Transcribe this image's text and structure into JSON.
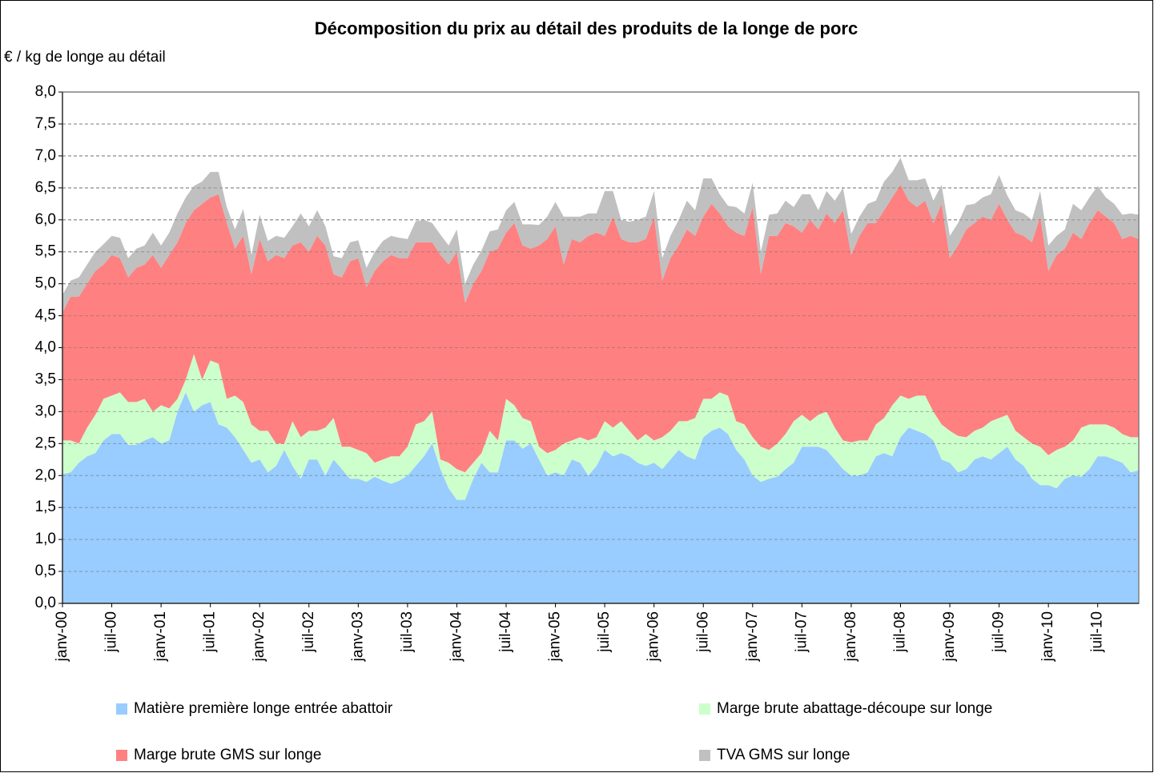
{
  "chart_data": {
    "type": "stacked_area",
    "title": "Décomposition du prix au détail des produits de la longe de porc",
    "y_axis_label": "€ / kg de longe au détail",
    "categories": [
      "janv-00",
      null,
      null,
      null,
      null,
      null,
      "juil-00",
      null,
      null,
      null,
      null,
      null,
      "janv-01",
      null,
      null,
      null,
      null,
      null,
      "juil-01",
      null,
      null,
      null,
      null,
      null,
      "janv-02",
      null,
      null,
      null,
      null,
      null,
      "juil-02",
      null,
      null,
      null,
      null,
      null,
      "janv-03",
      null,
      null,
      null,
      null,
      null,
      "juil-03",
      null,
      null,
      null,
      null,
      null,
      "janv-04",
      null,
      null,
      null,
      null,
      null,
      "juil-04",
      null,
      null,
      null,
      null,
      null,
      "janv-05",
      null,
      null,
      null,
      null,
      null,
      "juil-05",
      null,
      null,
      null,
      null,
      null,
      "janv-06",
      null,
      null,
      null,
      null,
      null,
      "juil-06",
      null,
      null,
      null,
      null,
      null,
      "janv-07",
      null,
      null,
      null,
      null,
      null,
      "juil-07",
      null,
      null,
      null,
      null,
      null,
      "janv-08",
      null,
      null,
      null,
      null,
      null,
      "juil-08",
      null,
      null,
      null,
      null,
      null,
      "janv-09",
      null,
      null,
      null,
      null,
      null,
      "juil-09",
      null,
      null,
      null,
      null,
      null,
      "janv-10",
      null,
      null,
      null,
      null,
      null,
      "juil-10",
      null,
      null,
      null,
      null,
      null
    ],
    "series": [
      {
        "name": "Matière première longe entrée abattoir",
        "color": "#99ccff",
        "values": [
          2.02,
          2.05,
          2.2,
          2.3,
          2.35,
          2.55,
          2.65,
          2.65,
          2.48,
          2.48,
          2.55,
          2.6,
          2.5,
          2.55,
          3.0,
          3.3,
          3.0,
          3.1,
          3.15,
          2.8,
          2.75,
          2.6,
          2.4,
          2.2,
          2.25,
          2.05,
          2.15,
          2.4,
          2.15,
          1.95,
          2.25,
          2.25,
          2.0,
          2.25,
          2.1,
          1.95,
          1.95,
          1.9,
          1.98,
          1.92,
          1.87,
          1.92,
          2.0,
          2.15,
          2.3,
          2.5,
          2.1,
          1.8,
          1.62,
          1.62,
          1.95,
          2.2,
          2.05,
          2.05,
          2.55,
          2.55,
          2.42,
          2.5,
          2.25,
          2.0,
          2.05,
          2.0,
          2.25,
          2.2,
          2.0,
          2.15,
          2.4,
          2.3,
          2.35,
          2.3,
          2.2,
          2.15,
          2.2,
          2.1,
          2.25,
          2.4,
          2.3,
          2.25,
          2.6,
          2.7,
          2.75,
          2.65,
          2.4,
          2.25,
          2.0,
          1.9,
          1.95,
          1.98,
          2.1,
          2.2,
          2.45,
          2.45,
          2.45,
          2.4,
          2.25,
          2.1,
          2.0,
          2.0,
          2.05,
          2.3,
          2.35,
          2.3,
          2.6,
          2.75,
          2.7,
          2.65,
          2.55,
          2.25,
          2.2,
          2.05,
          2.1,
          2.25,
          2.3,
          2.25,
          2.35,
          2.45,
          2.25,
          2.15,
          1.95,
          1.85,
          1.85,
          1.8,
          1.95,
          2.0,
          1.98,
          2.1,
          2.3,
          2.3,
          2.25,
          2.2,
          2.05,
          2.08
        ]
      },
      {
        "name": "Marge brute abattage-découpe sur longe",
        "color": "#ccffcc",
        "values": [
          0.53,
          0.5,
          0.3,
          0.45,
          0.6,
          0.65,
          0.6,
          0.65,
          0.67,
          0.67,
          0.65,
          0.4,
          0.6,
          0.5,
          0.2,
          0.2,
          0.9,
          0.4,
          0.65,
          0.95,
          0.45,
          0.65,
          0.75,
          0.6,
          0.45,
          0.65,
          0.35,
          0.1,
          0.7,
          0.65,
          0.45,
          0.45,
          0.75,
          0.65,
          0.35,
          0.5,
          0.45,
          0.45,
          0.22,
          0.33,
          0.43,
          0.38,
          0.45,
          0.65,
          0.55,
          0.5,
          0.15,
          0.4,
          0.48,
          0.43,
          0.25,
          0.15,
          0.65,
          0.5,
          0.65,
          0.55,
          0.48,
          0.35,
          0.2,
          0.35,
          0.35,
          0.5,
          0.3,
          0.4,
          0.55,
          0.45,
          0.45,
          0.45,
          0.5,
          0.4,
          0.35,
          0.5,
          0.35,
          0.5,
          0.45,
          0.45,
          0.55,
          0.65,
          0.6,
          0.5,
          0.55,
          0.6,
          0.45,
          0.55,
          0.6,
          0.55,
          0.45,
          0.52,
          0.55,
          0.65,
          0.5,
          0.4,
          0.5,
          0.6,
          0.5,
          0.45,
          0.52,
          0.55,
          0.5,
          0.5,
          0.55,
          0.8,
          0.65,
          0.45,
          0.55,
          0.6,
          0.45,
          0.55,
          0.5,
          0.57,
          0.5,
          0.45,
          0.45,
          0.6,
          0.55,
          0.5,
          0.45,
          0.45,
          0.55,
          0.6,
          0.47,
          0.6,
          0.5,
          0.55,
          0.77,
          0.7,
          0.5,
          0.5,
          0.5,
          0.45,
          0.55,
          0.52
        ]
      },
      {
        "name": "Marge brute GMS sur longe",
        "color": "#ff8080",
        "values": [
          2.0,
          2.25,
          2.3,
          2.25,
          2.25,
          2.1,
          2.2,
          2.1,
          1.95,
          2.1,
          2.1,
          2.45,
          2.15,
          2.4,
          2.45,
          2.45,
          2.25,
          2.75,
          2.55,
          2.65,
          2.75,
          2.3,
          2.6,
          2.35,
          3.0,
          2.65,
          2.95,
          2.9,
          2.75,
          3.05,
          2.8,
          3.05,
          2.85,
          2.25,
          2.65,
          2.9,
          3.0,
          2.6,
          3.0,
          3.1,
          3.15,
          3.1,
          2.95,
          2.85,
          2.8,
          2.65,
          3.2,
          3.1,
          3.4,
          2.65,
          2.8,
          2.85,
          2.8,
          3.0,
          2.6,
          2.85,
          2.7,
          2.7,
          3.15,
          3.35,
          3.5,
          2.8,
          3.15,
          3.05,
          3.2,
          3.2,
          2.9,
          3.3,
          2.85,
          2.95,
          3.1,
          3.05,
          3.5,
          2.45,
          2.7,
          2.75,
          3.0,
          2.85,
          2.85,
          3.05,
          2.8,
          2.65,
          2.95,
          2.95,
          3.6,
          2.7,
          3.35,
          3.25,
          3.3,
          3.05,
          2.85,
          3.15,
          2.9,
          3.1,
          3.2,
          3.6,
          2.93,
          3.2,
          3.4,
          3.15,
          3.25,
          3.25,
          3.3,
          3.1,
          2.95,
          3.05,
          2.95,
          3.45,
          2.7,
          2.98,
          3.25,
          3.25,
          3.3,
          3.15,
          3.35,
          3.05,
          3.1,
          3.15,
          3.15,
          3.6,
          2.88,
          3.05,
          3.1,
          3.25,
          2.95,
          3.15,
          3.35,
          3.25,
          3.2,
          3.05,
          3.15,
          3.1
        ]
      },
      {
        "name": "TVA GMS sur longe",
        "color": "#c0c0c0",
        "values": [
          0.28,
          0.25,
          0.3,
          0.3,
          0.3,
          0.32,
          0.3,
          0.32,
          0.3,
          0.3,
          0.3,
          0.35,
          0.35,
          0.35,
          0.45,
          0.4,
          0.38,
          0.35,
          0.4,
          0.35,
          0.25,
          0.3,
          0.42,
          0.3,
          0.38,
          0.32,
          0.3,
          0.32,
          0.3,
          0.45,
          0.4,
          0.4,
          0.3,
          0.28,
          0.3,
          0.3,
          0.28,
          0.3,
          0.3,
          0.32,
          0.3,
          0.32,
          0.3,
          0.33,
          0.35,
          0.3,
          0.32,
          0.3,
          0.35,
          0.3,
          0.3,
          0.32,
          0.32,
          0.3,
          0.35,
          0.33,
          0.33,
          0.38,
          0.32,
          0.35,
          0.38,
          0.75,
          0.35,
          0.4,
          0.35,
          0.3,
          0.7,
          0.4,
          0.3,
          0.32,
          0.35,
          0.35,
          0.4,
          0.35,
          0.35,
          0.4,
          0.45,
          0.4,
          0.6,
          0.4,
          0.3,
          0.32,
          0.4,
          0.35,
          0.38,
          0.35,
          0.33,
          0.35,
          0.35,
          0.3,
          0.6,
          0.4,
          0.3,
          0.35,
          0.35,
          0.35,
          0.33,
          0.3,
          0.3,
          0.35,
          0.45,
          0.4,
          0.42,
          0.32,
          0.42,
          0.35,
          0.35,
          0.3,
          0.35,
          0.35,
          0.38,
          0.3,
          0.3,
          0.4,
          0.45,
          0.38,
          0.35,
          0.35,
          0.35,
          0.4,
          0.4,
          0.3,
          0.3,
          0.45,
          0.45,
          0.4,
          0.38,
          0.3,
          0.3,
          0.38,
          0.35,
          0.38
        ]
      }
    ],
    "ylim": [
      0,
      8
    ],
    "yticks": [
      {
        "value": 0,
        "label": "0,0"
      },
      {
        "value": 0.5,
        "label": "0,5"
      },
      {
        "value": 1,
        "label": "1,0"
      },
      {
        "value": 1.5,
        "label": "1,5"
      },
      {
        "value": 2,
        "label": "2,0"
      },
      {
        "value": 2.5,
        "label": "2,5"
      },
      {
        "value": 3,
        "label": "3,0"
      },
      {
        "value": 3.5,
        "label": "3,5"
      },
      {
        "value": 4,
        "label": "4,0"
      },
      {
        "value": 4.5,
        "label": "4,5"
      },
      {
        "value": 5,
        "label": "5,0"
      },
      {
        "value": 5.5,
        "label": "5,5"
      },
      {
        "value": 6,
        "label": "6,0"
      },
      {
        "value": 6.5,
        "label": "6,5"
      },
      {
        "value": 7,
        "label": "7,0"
      },
      {
        "value": 7.5,
        "label": "7,5"
      },
      {
        "value": 8,
        "label": "8,0"
      }
    ],
    "grid": true,
    "legend": "bottom"
  }
}
